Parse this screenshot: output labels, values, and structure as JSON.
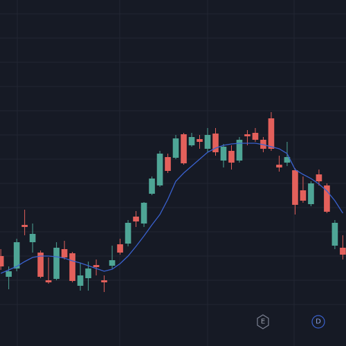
{
  "chart_data": {
    "type": "candlestick",
    "xlim": [
      -0.1,
      43.4
    ],
    "ylim": [
      0,
      500
    ],
    "up_color": "#4ea596",
    "down_color": "#e3605b",
    "series": [
      {
        "name": "open",
        "values": [
          130,
          100,
          112,
          175,
          150,
          135,
          95,
          97,
          140,
          134,
          87,
          98,
          117,
          95,
          116,
          147,
          148,
          187,
          177,
          220,
          232,
          273,
          272,
          306,
          290,
          299,
          285,
          307,
          268,
          282,
          268,
          306,
          308,
          298,
          329,
          262,
          265,
          254,
          225,
          205,
          248,
          232,
          145,
          142
        ]
      },
      {
        "name": "high",
        "values": [
          140,
          115,
          155,
          197,
          177,
          138,
          128,
          150,
          152,
          136,
          120,
          122,
          125,
          102,
          145,
          155,
          182,
          195,
          208,
          245,
          282,
          278,
          305,
          308,
          308,
          305,
          315,
          315,
          292,
          290,
          302,
          312,
          315,
          302,
          338,
          275,
          295,
          257,
          245,
          238,
          255,
          235,
          182,
          160
        ]
      },
      {
        "name": "low",
        "values": [
          110,
          82,
          108,
          160,
          135,
          98,
          90,
          95,
          125,
          92,
          80,
          80,
          102,
          78,
          112,
          132,
          144,
          172,
          172,
          218,
          230,
          250,
          270,
          262,
          288,
          285,
          280,
          275,
          258,
          255,
          265,
          290,
          295,
          280,
          282,
          252,
          260,
          190,
          207,
          202,
          232,
          192,
          140,
          125
        ]
      },
      {
        "name": "close",
        "values": [
          115,
          108,
          150,
          172,
          162,
          100,
          92,
          142,
          128,
          94,
          102,
          112,
          114,
          92,
          124,
          135,
          178,
          180,
          207,
          242,
          278,
          253,
          300,
          264,
          302,
          295,
          305,
          280,
          288,
          265,
          298,
          303,
          298,
          285,
          285,
          258,
          273,
          204,
          210,
          235,
          238,
          194,
          178,
          132
        ]
      }
    ],
    "moving_average": {
      "color": "#3a62d0",
      "values": [
        105,
        110,
        115,
        122,
        128,
        130,
        130,
        129,
        127,
        123,
        120,
        116,
        112,
        108,
        111,
        119,
        130,
        144,
        159,
        175,
        190,
        212,
        238,
        250,
        260,
        270,
        280,
        286,
        290,
        292,
        293,
        293,
        293,
        291,
        288,
        285,
        278,
        255,
        248,
        242,
        234,
        224,
        210,
        192
      ]
    },
    "events": [
      "E",
      "D"
    ]
  }
}
